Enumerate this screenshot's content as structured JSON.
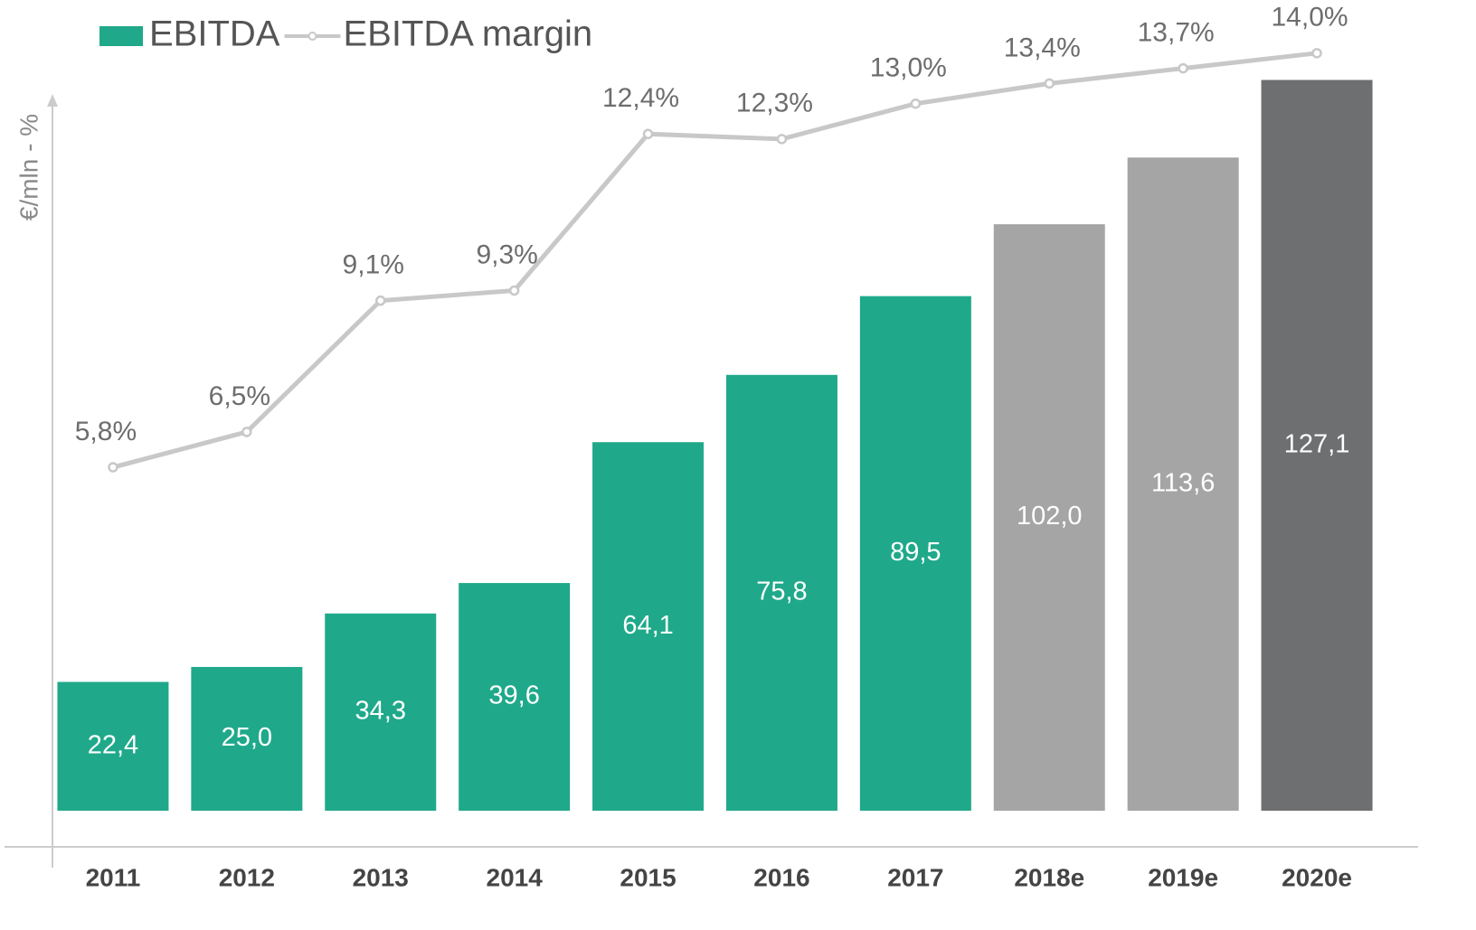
{
  "chart_data": {
    "type": "bar",
    "y_axis_label": "€/mln - %",
    "categories": [
      "2011",
      "2012",
      "2013",
      "2014",
      "2015",
      "2016",
      "2017",
      "2018e",
      "2019e",
      "2020e"
    ],
    "ylim": [
      0,
      130
    ],
    "y2lim": [
      -1,
      13.8
    ],
    "legend": "top-left",
    "series": [
      {
        "name": "EBITDA",
        "type": "bar",
        "color": "#1fa98a",
        "colors": [
          "#1fa98a",
          "#1fa98a",
          "#1fa98a",
          "#1fa98a",
          "#1fa98a",
          "#1fa98a",
          "#1fa98a",
          "#a5a5a5",
          "#a5a5a5",
          "#6e6f71"
        ],
        "values": [
          22.4,
          25.0,
          34.3,
          39.6,
          64.1,
          75.8,
          89.5,
          102.0,
          113.6,
          127.1
        ],
        "value_labels": [
          "22,4",
          "25,0",
          "34,3",
          "39,6",
          "64,1",
          "75,8",
          "89,5",
          "102,0",
          "113,6",
          "127,1"
        ]
      },
      {
        "name": "EBITDA margin",
        "type": "line",
        "axis": "y2",
        "color": "#c8c8c8",
        "values": [
          5.8,
          6.5,
          9.1,
          9.3,
          12.4,
          12.3,
          13.0,
          13.4,
          13.7,
          14.0
        ],
        "value_labels": [
          "5,8%",
          "6,5%",
          "9,1%",
          "9,3%",
          "12,4%",
          "12,3%",
          "13,0%",
          "13,4%",
          "13,7%",
          "14,0%"
        ]
      }
    ]
  }
}
